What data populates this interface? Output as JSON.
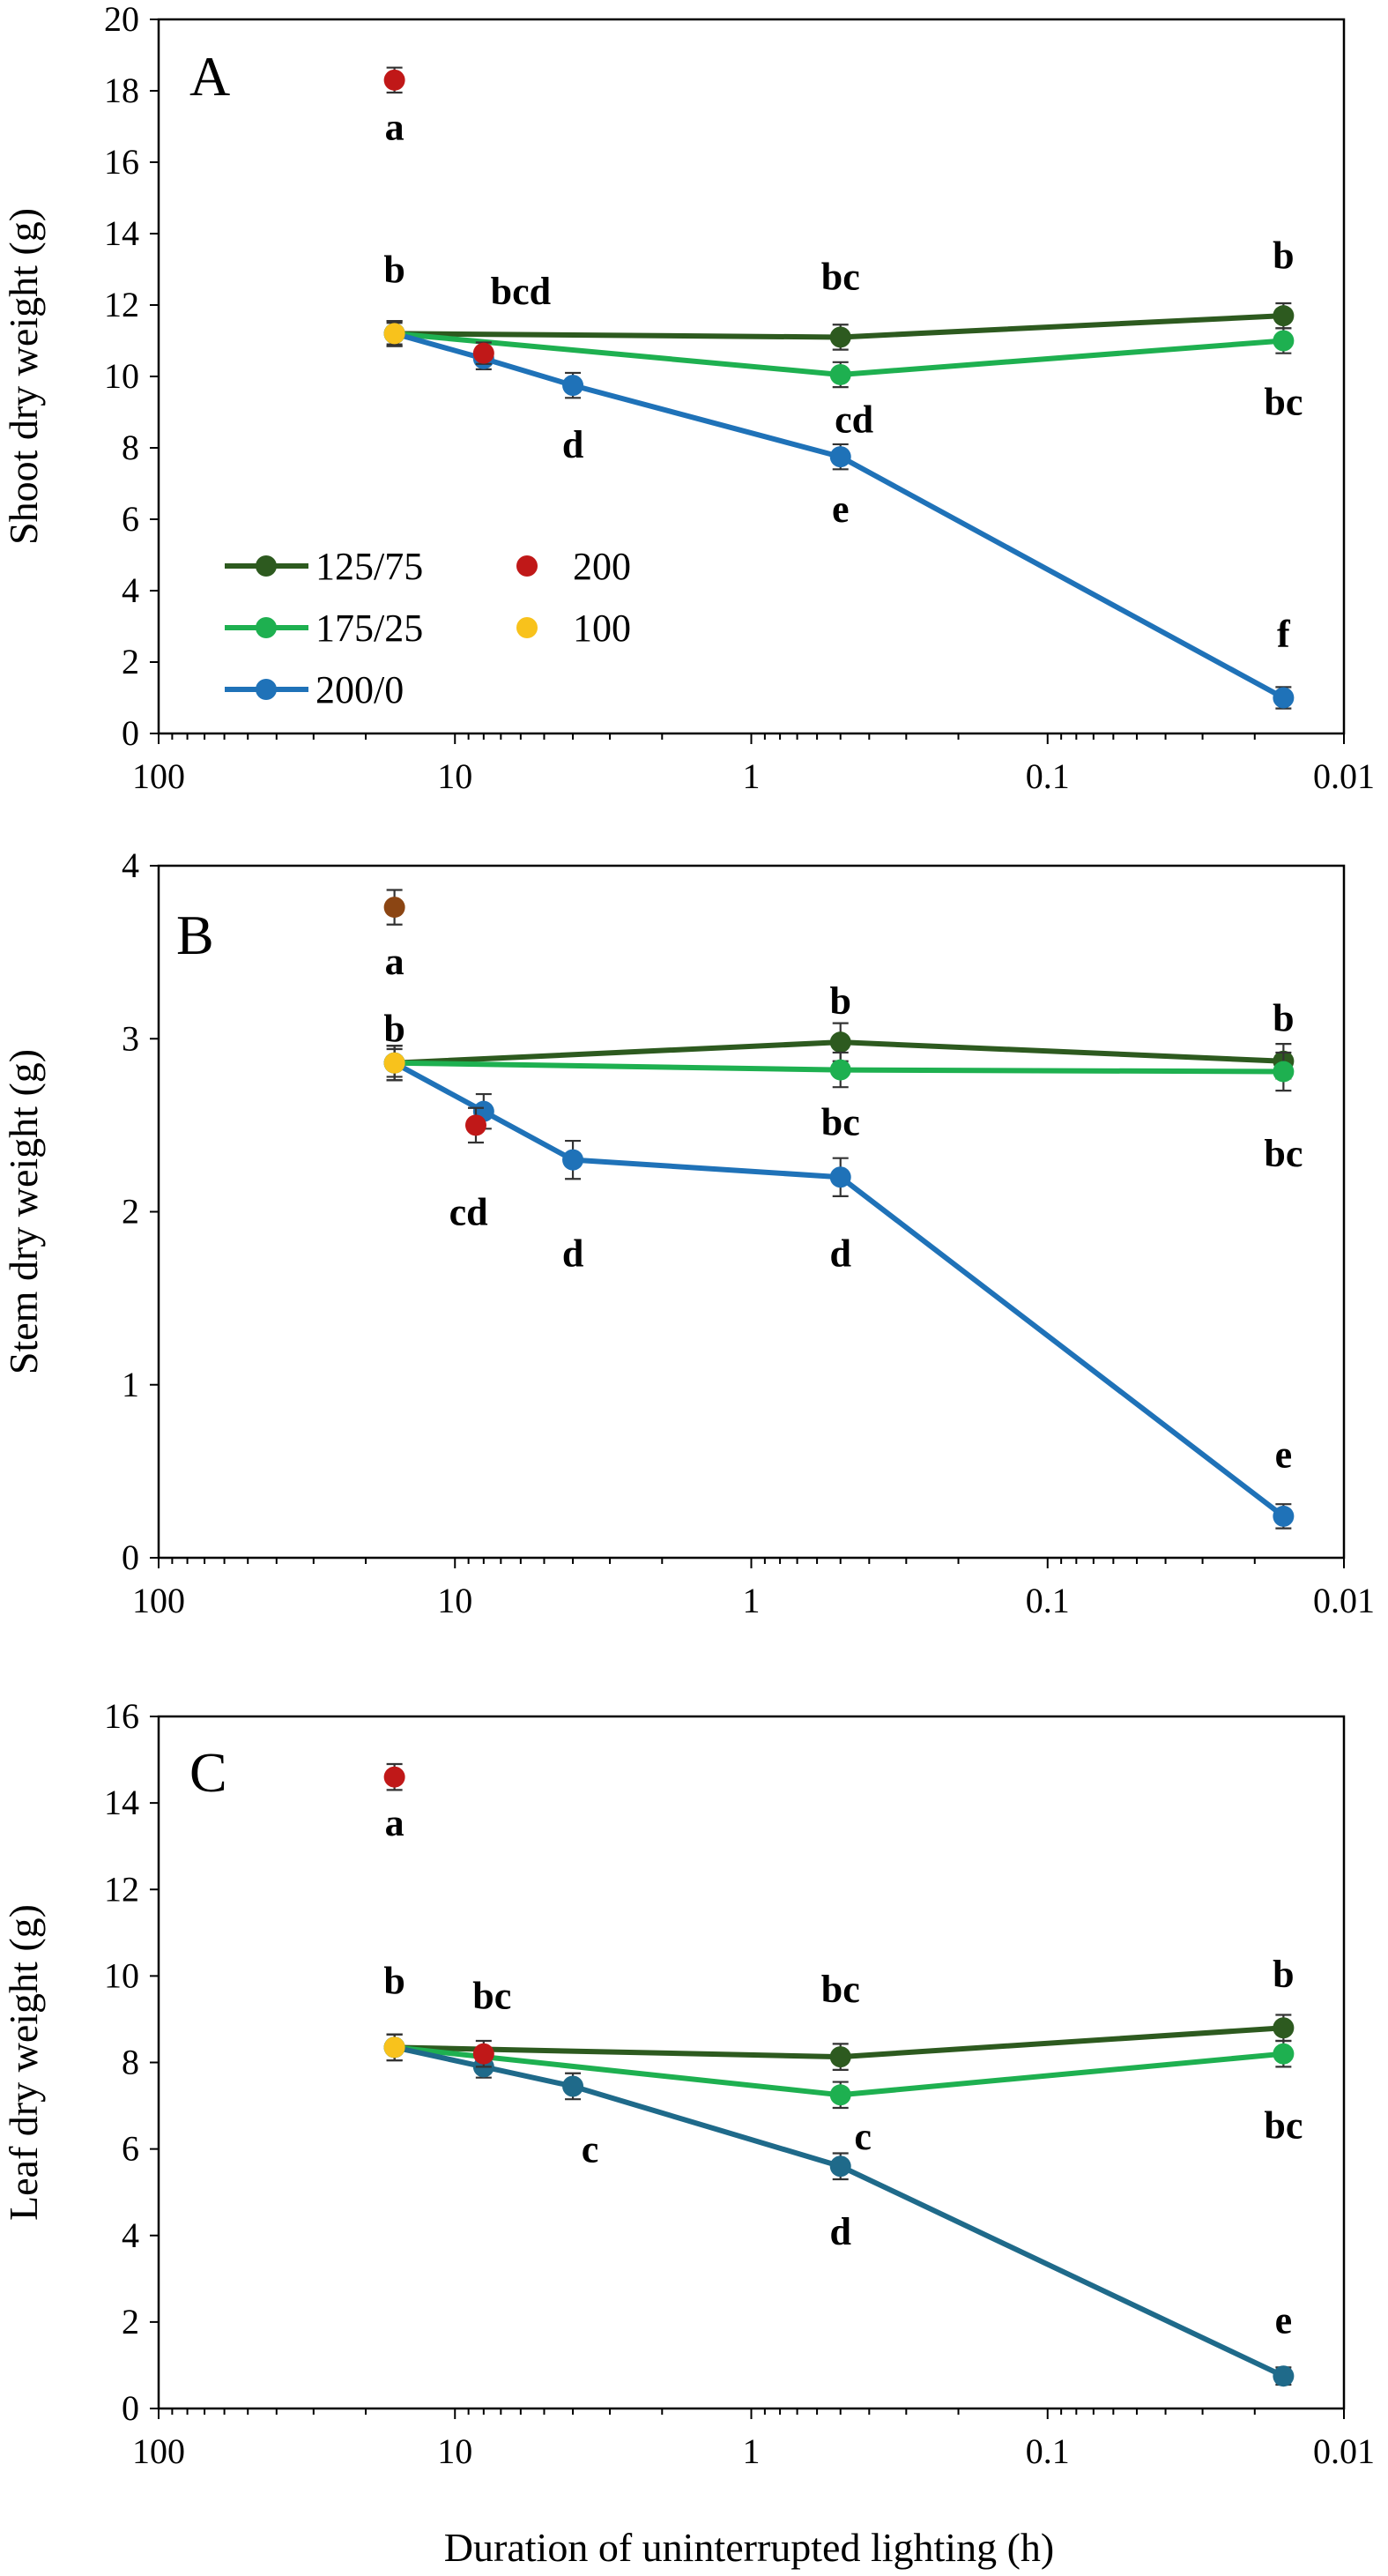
{
  "figure": {
    "xlabel": "Duration of uninterrupted lighting (h)"
  },
  "legend": {
    "items": [
      {
        "label": "125/75",
        "type": "line",
        "color": "#2d5a1f"
      },
      {
        "label": "175/25",
        "type": "line",
        "color": "#1eb050"
      },
      {
        "label": "200/0",
        "type": "line",
        "color": "#1f72b8"
      },
      {
        "label": "200",
        "type": "point",
        "color": "#c01818"
      },
      {
        "label": "100",
        "type": "point",
        "color": "#f8c21c"
      }
    ]
  },
  "chart_data": [
    {
      "type": "line",
      "panel": "A",
      "ylabel": "Shoot dry weight (g)",
      "xscale": "log",
      "xreversed": true,
      "xlim": [
        100,
        0.01
      ],
      "ylim": [
        0,
        20
      ],
      "xticks": [
        100,
        10,
        1,
        0.1,
        0.01
      ],
      "xtick_labels": [
        "100",
        "10",
        "1",
        "0.1",
        "0.01"
      ],
      "yticks": [
        0,
        2,
        4,
        6,
        8,
        10,
        12,
        14,
        16,
        18,
        20
      ],
      "ytick_labels": [
        "0",
        "2",
        "4",
        "6",
        "8",
        "10",
        "12",
        "14",
        "16",
        "18",
        "20"
      ],
      "series": [
        {
          "name": "125/75",
          "color": "#2d5a1f",
          "line": true,
          "x": [
            16,
            0.5,
            0.016
          ],
          "y": [
            11.2,
            11.1,
            11.7
          ],
          "err": [
            0.35,
            0.35,
            0.35
          ]
        },
        {
          "name": "175/25",
          "color": "#1eb050",
          "line": true,
          "x": [
            16,
            0.5,
            0.016
          ],
          "y": [
            11.2,
            10.05,
            11.0
          ],
          "err": [
            0.35,
            0.35,
            0.35
          ]
        },
        {
          "name": "200/0",
          "color": "#1f72b8",
          "line": true,
          "x": [
            16,
            8,
            4,
            0.5,
            0.016
          ],
          "y": [
            11.2,
            10.5,
            9.75,
            7.75,
            1.0
          ],
          "err": [
            0.35,
            0.3,
            0.35,
            0.35,
            0.3
          ]
        },
        {
          "name": "200",
          "color": "#c01818",
          "line": false,
          "x": [
            16,
            8
          ],
          "y": [
            18.3,
            10.65
          ],
          "err": [
            0.35,
            0.3
          ]
        },
        {
          "name": "100",
          "color": "#f8c21c",
          "line": false,
          "x": [
            16
          ],
          "y": [
            11.2
          ],
          "err": [
            0.3
          ]
        }
      ],
      "annotations": [
        {
          "text": "a",
          "x": 16,
          "y": 17.0
        },
        {
          "text": "b",
          "x": 16,
          "y": 13.0
        },
        {
          "text": "bcd",
          "x": 6,
          "y": 12.4
        },
        {
          "text": "d",
          "x": 4,
          "y": 8.1
        },
        {
          "text": "bc",
          "x": 0.5,
          "y": 12.8
        },
        {
          "text": "cd",
          "x": 0.45,
          "y": 8.8
        },
        {
          "text": "e",
          "x": 0.5,
          "y": 6.3
        },
        {
          "text": "b",
          "x": 0.016,
          "y": 13.4
        },
        {
          "text": "bc",
          "x": 0.016,
          "y": 9.3
        },
        {
          "text": "f",
          "x": 0.016,
          "y": 2.8
        }
      ]
    },
    {
      "type": "line",
      "panel": "B",
      "ylabel": "Stem dry weight (g)",
      "xscale": "log",
      "xreversed": true,
      "xlim": [
        100,
        0.01
      ],
      "ylim": [
        0,
        4
      ],
      "xticks": [
        100,
        10,
        1,
        0.1,
        0.01
      ],
      "xtick_labels": [
        "100",
        "10",
        "1",
        "0.1",
        "0.01"
      ],
      "yticks": [
        0,
        1,
        2,
        3,
        4
      ],
      "ytick_labels": [
        "0",
        "1",
        "2",
        "3",
        "4"
      ],
      "series": [
        {
          "name": "125/75",
          "color": "#2d5a1f",
          "line": true,
          "x": [
            16,
            0.5,
            0.016
          ],
          "y": [
            2.86,
            2.98,
            2.87
          ],
          "err": [
            0.1,
            0.11,
            0.1
          ]
        },
        {
          "name": "175/25",
          "color": "#1eb050",
          "line": true,
          "x": [
            16,
            0.5,
            0.016
          ],
          "y": [
            2.86,
            2.82,
            2.81
          ],
          "err": [
            0.1,
            0.1,
            0.11
          ]
        },
        {
          "name": "200/0",
          "color": "#1f72b8",
          "line": true,
          "x": [
            16,
            8,
            4,
            0.5,
            0.016
          ],
          "y": [
            2.86,
            2.58,
            2.3,
            2.2,
            0.24
          ],
          "err": [
            0.1,
            0.1,
            0.11,
            0.11,
            0.07
          ]
        },
        {
          "name": "200",
          "color": "#c01818",
          "line": false,
          "x": [
            8.5
          ],
          "y": [
            2.5
          ],
          "err": [
            0.1
          ]
        },
        {
          "name": "100",
          "color": "#f8c21c",
          "line": false,
          "x": [
            16
          ],
          "y": [
            2.86
          ],
          "err": [
            0.08
          ]
        },
        {
          "name": "",
          "color": "#8b4513",
          "line": false,
          "x": [
            16
          ],
          "y": [
            3.76
          ],
          "err": [
            0.1
          ]
        }
      ],
      "annotations": [
        {
          "text": "a",
          "x": 16,
          "y": 3.45
        },
        {
          "text": "b",
          "x": 16,
          "y": 3.06
        },
        {
          "text": "cd",
          "x": 9.0,
          "y": 2.0
        },
        {
          "text": "d",
          "x": 4,
          "y": 1.76
        },
        {
          "text": "b",
          "x": 0.5,
          "y": 3.22
        },
        {
          "text": "bc",
          "x": 0.5,
          "y": 2.52
        },
        {
          "text": "d",
          "x": 0.5,
          "y": 1.76
        },
        {
          "text": "b",
          "x": 0.016,
          "y": 3.12
        },
        {
          "text": "bc",
          "x": 0.016,
          "y": 2.34
        },
        {
          "text": "e",
          "x": 0.016,
          "y": 0.6
        }
      ]
    },
    {
      "type": "line",
      "panel": "C",
      "ylabel": "Leaf dry weight (g)",
      "xlabel": "Duration of uninterrupted lighting (h)",
      "xscale": "log",
      "xreversed": true,
      "xlim": [
        100,
        0.01
      ],
      "ylim": [
        0,
        16
      ],
      "xticks": [
        100,
        10,
        1,
        0.1,
        0.01
      ],
      "xtick_labels": [
        "100",
        "10",
        "1",
        "0.1",
        "0.01"
      ],
      "yticks": [
        0,
        2,
        4,
        6,
        8,
        10,
        12,
        14,
        16
      ],
      "ytick_labels": [
        "0",
        "2",
        "4",
        "6",
        "8",
        "10",
        "12",
        "14",
        "16"
      ],
      "series": [
        {
          "name": "125/75",
          "color": "#2d5a1f",
          "line": true,
          "x": [
            16,
            0.5,
            0.016
          ],
          "y": [
            8.35,
            8.13,
            8.8
          ],
          "err": [
            0.3,
            0.3,
            0.3
          ]
        },
        {
          "name": "175/25",
          "color": "#1eb050",
          "line": true,
          "x": [
            16,
            0.5,
            0.016
          ],
          "y": [
            8.35,
            7.25,
            8.2
          ],
          "err": [
            0.3,
            0.3,
            0.3
          ]
        },
        {
          "name": "200/0",
          "color": "#1f6a8a",
          "line": true,
          "x": [
            16,
            8,
            4,
            0.5,
            0.016
          ],
          "y": [
            8.35,
            7.9,
            7.45,
            5.6,
            0.75
          ],
          "err": [
            0.3,
            0.25,
            0.3,
            0.3,
            0.2
          ]
        },
        {
          "name": "200",
          "color": "#c01818",
          "line": false,
          "x": [
            16,
            8
          ],
          "y": [
            14.6,
            8.2
          ],
          "err": [
            0.3,
            0.3
          ]
        },
        {
          "name": "100",
          "color": "#f8c21c",
          "line": false,
          "x": [
            16
          ],
          "y": [
            8.35
          ],
          "err": [
            0.3
          ]
        }
      ],
      "annotations": [
        {
          "text": "a",
          "x": 16,
          "y": 13.55
        },
        {
          "text": "b",
          "x": 16,
          "y": 9.9
        },
        {
          "text": "bc",
          "x": 7.5,
          "y": 9.55
        },
        {
          "text": "c",
          "x": 3.5,
          "y": 6.0
        },
        {
          "text": "bc",
          "x": 0.5,
          "y": 9.7
        },
        {
          "text": "c",
          "x": 0.42,
          "y": 6.3
        },
        {
          "text": "d",
          "x": 0.5,
          "y": 4.1
        },
        {
          "text": "b",
          "x": 0.016,
          "y": 10.05
        },
        {
          "text": "bc",
          "x": 0.016,
          "y": 6.55
        },
        {
          "text": "e",
          "x": 0.016,
          "y": 2.05
        }
      ]
    }
  ]
}
